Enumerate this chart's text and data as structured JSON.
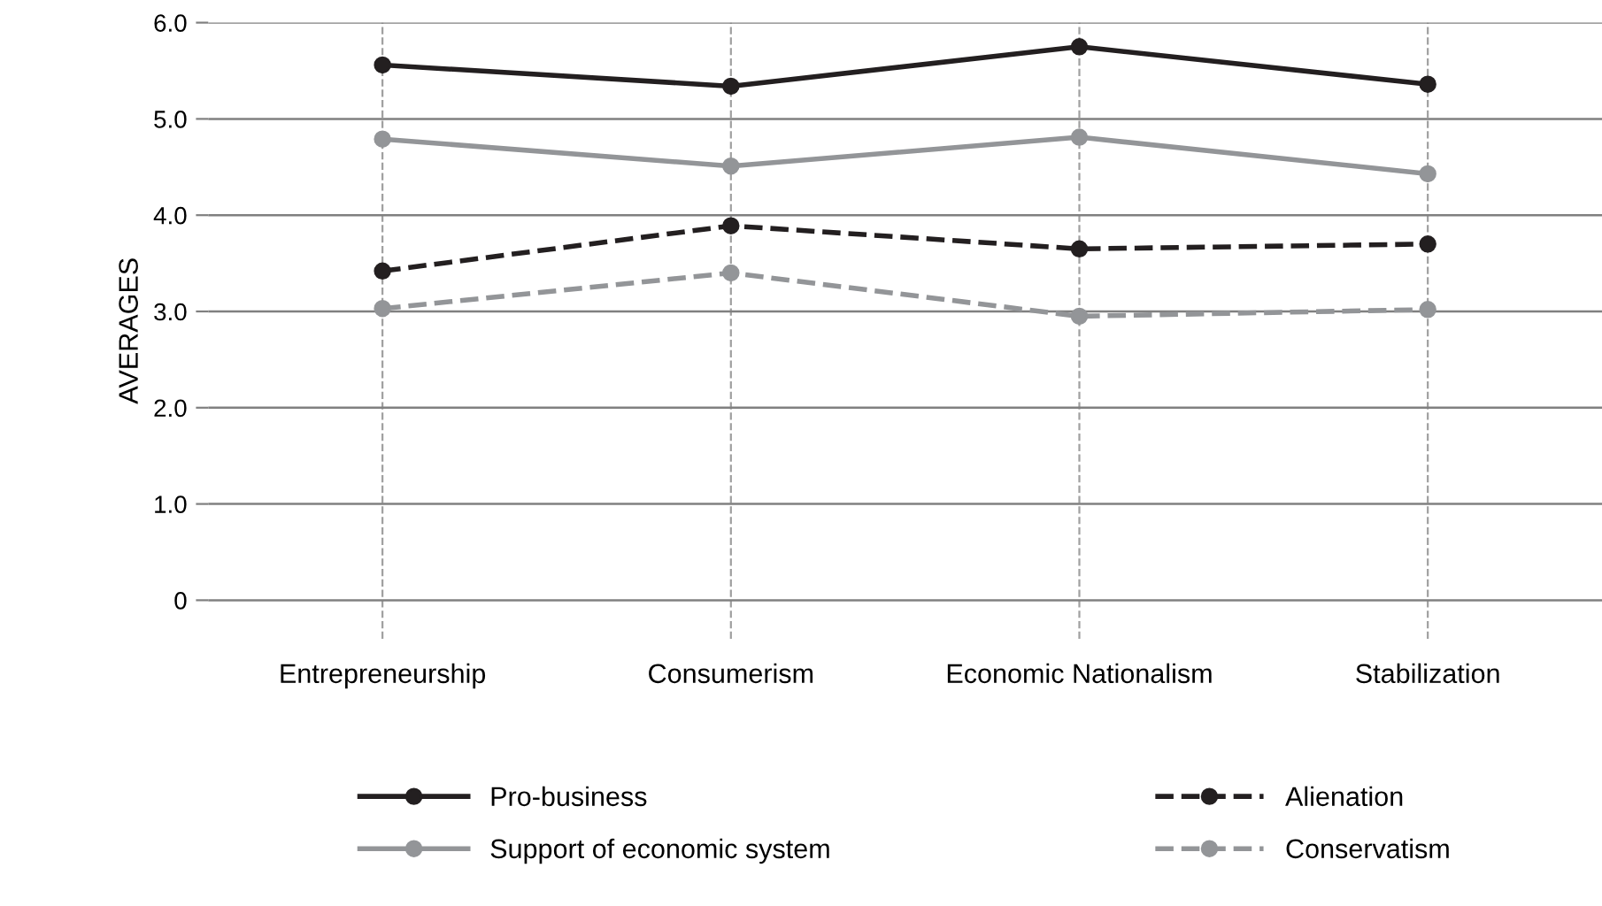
{
  "chart_data": {
    "type": "line",
    "ylabel": "AVERAGES",
    "categories": [
      "Entrepreneurship",
      "Consumerism",
      "Economic Nationalism",
      "Stabilization"
    ],
    "series": [
      {
        "name": "Pro-business",
        "color": "#231f20",
        "line_style": "solid",
        "values": [
          5.56,
          5.34,
          5.75,
          5.36
        ]
      },
      {
        "name": "Support of economic system",
        "color": "#939598",
        "line_style": "solid",
        "values": [
          4.79,
          4.51,
          4.81,
          4.43
        ]
      },
      {
        "name": "Alienation",
        "color": "#231f20",
        "line_style": "dashed",
        "values": [
          3.42,
          3.89,
          3.65,
          3.7
        ]
      },
      {
        "name": "Conservatism",
        "color": "#939598",
        "line_style": "dashed",
        "values": [
          3.03,
          3.4,
          2.95,
          3.02
        ]
      }
    ],
    "ylim": [
      -0.4,
      6.0
    ],
    "yticks": [
      {
        "value": 0,
        "label": "0"
      },
      {
        "value": 1,
        "label": "1.0"
      },
      {
        "value": 2,
        "label": "2.0"
      },
      {
        "value": 3,
        "label": "3.0"
      },
      {
        "value": 4,
        "label": "4.0"
      },
      {
        "value": 5,
        "label": "5.0"
      },
      {
        "value": 6,
        "label": "6.0"
      }
    ],
    "grid": true,
    "legend": "bottom",
    "marker": "circle"
  }
}
